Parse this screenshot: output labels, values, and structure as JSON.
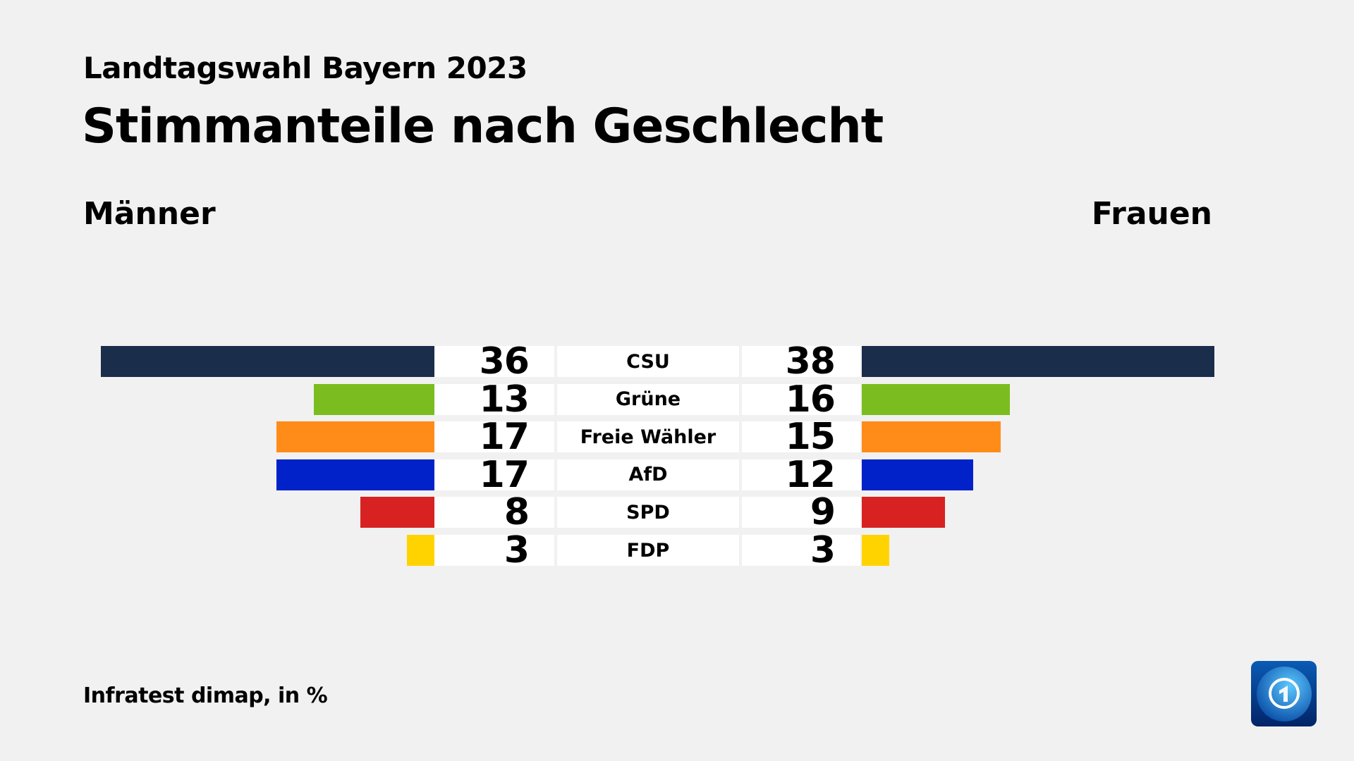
{
  "header": {
    "subtitle": "Landtagswahl Bayern 2023",
    "title": "Stimmanteile nach Geschlecht"
  },
  "legend": {
    "left": "Männer",
    "right": "Frauen"
  },
  "footer": {
    "source": "Infratest dimap, in %"
  },
  "logo": {
    "name": "tagesschau-logo",
    "text": "1"
  },
  "chart_data": {
    "type": "bar",
    "orientation": "horizontal-butterfly",
    "title": "Stimmanteile nach Geschlecht",
    "subtitle": "Landtagswahl Bayern 2023",
    "unit": "%",
    "categories": [
      "CSU",
      "Grüne",
      "Freie Wähler",
      "AfD",
      "SPD",
      "FDP"
    ],
    "colors": [
      "#1a2d4b",
      "#7bbd1e",
      "#ff8c19",
      "#0022c8",
      "#d82222",
      "#ffd300"
    ],
    "series": [
      {
        "name": "Männer",
        "values": [
          36,
          13,
          17,
          17,
          8,
          3
        ]
      },
      {
        "name": "Frauen",
        "values": [
          38,
          16,
          15,
          12,
          9,
          3
        ]
      }
    ]
  }
}
